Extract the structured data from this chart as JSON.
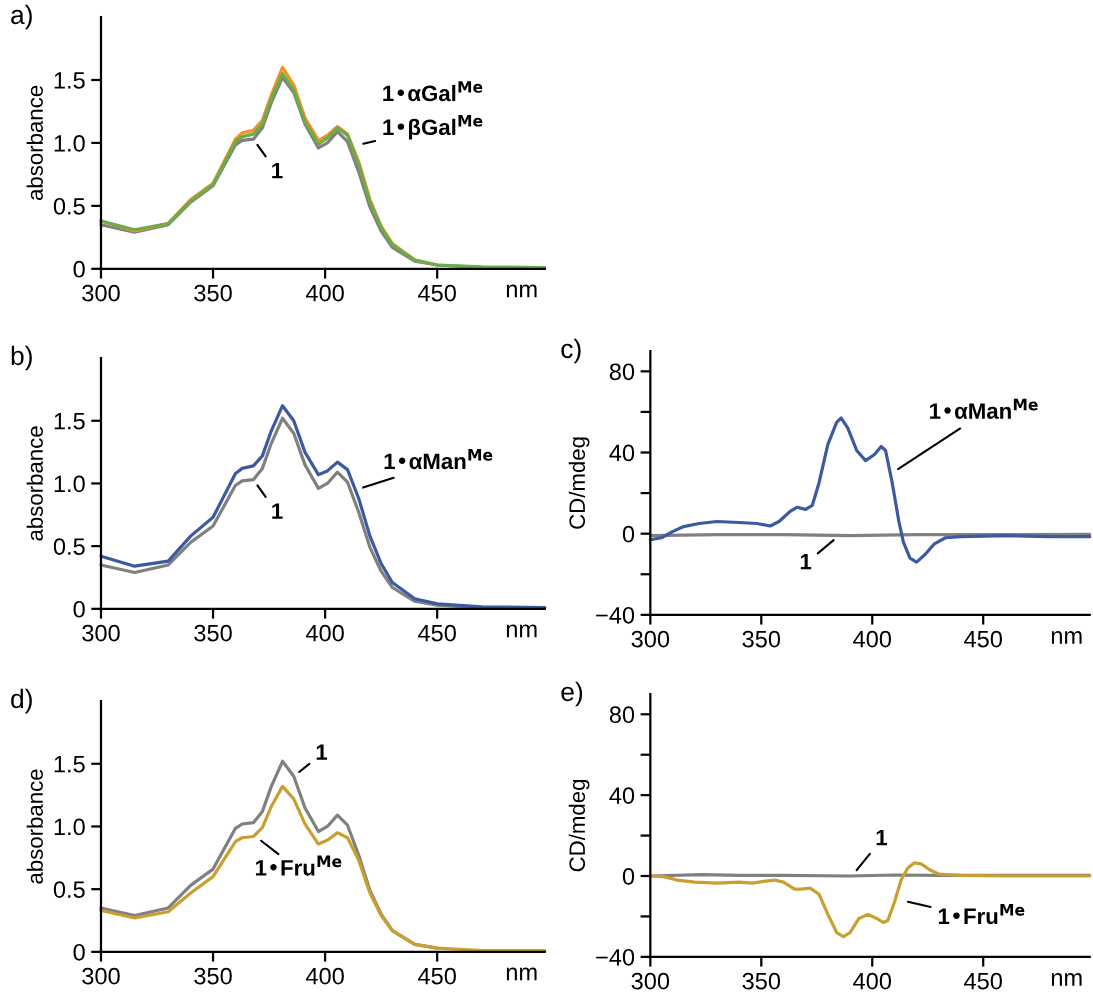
{
  "chart_data": [
    {
      "type": "line",
      "title": "a)",
      "xlabel": "nm",
      "ylabel": "absorbance",
      "xlim": [
        300,
        498
      ],
      "ylim": [
        0,
        2.0
      ],
      "xticks": [
        300,
        350,
        400,
        450
      ],
      "yticks": [
        0,
        0.5,
        {
          "value": 1,
          "label": "1.0"
        },
        1.5
      ],
      "x": [
        300,
        315,
        330,
        340,
        350,
        360,
        363,
        368,
        372,
        376,
        381,
        386,
        391,
        397,
        401,
        405.5,
        410,
        415,
        420,
        425,
        430,
        440,
        450,
        470,
        498
      ],
      "series": [
        {
          "color": "#808080",
          "values": [
            0.35,
            0.29,
            0.35,
            0.53,
            0.66,
            0.985,
            1.02,
            1.03,
            1.12,
            1.32,
            1.52,
            1.4,
            1.15,
            0.96,
            1.0,
            1.09,
            1.01,
            0.77,
            0.49,
            0.3,
            0.17,
            0.06,
            0.03,
            0.01,
            0.01
          ]
        },
        {
          "color": "#f39321",
          "values": [
            0.38,
            0.3,
            0.36,
            0.55,
            0.68,
            1.03,
            1.08,
            1.1,
            1.18,
            1.38,
            1.6,
            1.46,
            1.2,
            1.02,
            1.06,
            1.13,
            1.07,
            0.85,
            0.55,
            0.34,
            0.2,
            0.07,
            0.03,
            null,
            null
          ]
        },
        {
          "color": "#6bac4b",
          "values": [
            0.38,
            0.31,
            0.36,
            0.54,
            0.67,
            1.01,
            1.05,
            1.07,
            1.15,
            1.35,
            1.55,
            1.42,
            1.17,
            0.99,
            1.04,
            1.12,
            1.06,
            0.83,
            0.53,
            0.33,
            0.19,
            0.07,
            0.03,
            0.015,
            0.01
          ]
        }
      ],
      "annotations": [
        {
          "text": "1",
          "x": 368,
          "y": 1.03
        },
        {
          "text": "1•αGal$^{Me}$",
          "x": 414,
          "y": 0.98
        },
        {
          "text": "1•βGal$^{Me}$",
          "x": 414,
          "y": 0.98
        }
      ]
    },
    {
      "type": "line",
      "title": "b)",
      "xlabel": "nm",
      "ylabel": "absorbance",
      "xlim": [
        300,
        498
      ],
      "ylim": [
        0,
        2.0
      ],
      "xticks": [
        300,
        350,
        400,
        450
      ],
      "yticks": [
        0,
        0.5,
        {
          "value": 1,
          "label": "1.0"
        },
        1.5
      ],
      "x": [
        300,
        315,
        330,
        340,
        350,
        360,
        363,
        368,
        372,
        376,
        381,
        386,
        391,
        397,
        401,
        405.5,
        410,
        415,
        420,
        425,
        430,
        440,
        450,
        470,
        498
      ],
      "series": [
        {
          "color": "#808080",
          "values": [
            0.35,
            0.29,
            0.35,
            0.53,
            0.66,
            0.985,
            1.02,
            1.03,
            1.12,
            1.32,
            1.52,
            1.4,
            1.15,
            0.96,
            1.0,
            1.09,
            1.01,
            0.77,
            0.49,
            0.3,
            0.17,
            0.06,
            0.03,
            0.01,
            0.01
          ]
        },
        {
          "color": "#3b5aa0",
          "values": [
            0.42,
            0.34,
            0.38,
            0.58,
            0.73,
            1.08,
            1.12,
            1.14,
            1.22,
            1.42,
            1.62,
            1.5,
            1.25,
            1.07,
            1.1,
            1.17,
            1.11,
            0.88,
            0.58,
            0.36,
            0.21,
            0.08,
            0.04,
            0.015,
            0.01
          ]
        }
      ],
      "annotations": [
        {
          "text": "1",
          "x": 368,
          "y": 1.03
        },
        {
          "text": "1•αMan$^{Me}$",
          "x": 414,
          "y": 0.95
        }
      ]
    },
    {
      "type": "line",
      "title": "c)",
      "xlabel": "nm",
      "ylabel": "CD/mdeg",
      "xlim": [
        300,
        498
      ],
      "ylim": [
        -40,
        90
      ],
      "xticks": [
        300,
        350,
        400,
        450
      ],
      "yticks": [
        {
          "value": -40,
          "label": "−40"
        },
        {
          "value": -20,
          "label": null
        },
        0,
        {
          "value": 20,
          "label": null
        },
        40,
        {
          "value": 60,
          "label": null
        },
        80
      ],
      "series": [
        {
          "color": "#808080",
          "x": [
            300,
            330,
            360,
            390,
            420,
            450,
            498
          ],
          "values": [
            -1,
            -0.5,
            -0.5,
            -1,
            -0.5,
            -0.5,
            -0.3
          ]
        },
        {
          "color": "#3b5aa0",
          "x": [
            300,
            305,
            310,
            315,
            322,
            330,
            340,
            348,
            354,
            358,
            363,
            366,
            370,
            373,
            376,
            380,
            384,
            386,
            389,
            393,
            397,
            401,
            404,
            406,
            409,
            412,
            414,
            417,
            420,
            424,
            428,
            433,
            440,
            460,
            480,
            498
          ],
          "values": [
            -3,
            -2,
            1,
            3.5,
            5,
            6,
            5.5,
            5,
            3.8,
            6,
            11,
            13,
            12,
            14,
            25,
            44,
            55,
            57,
            52,
            41,
            36,
            39,
            43,
            41,
            25,
            6,
            -4,
            -12,
            -14,
            -10,
            -5,
            -2,
            -1.5,
            -1,
            -1.5,
            -1.5
          ]
        }
      ],
      "annotations": [
        {
          "text": "1",
          "x": 385,
          "y": -1
        },
        {
          "text": "1•αMan$^{Me}$",
          "x": 409,
          "y": 30
        }
      ]
    },
    {
      "type": "line",
      "title": "d)",
      "xlabel": "nm",
      "ylabel": "absorbance",
      "xlim": [
        300,
        498
      ],
      "ylim": [
        0,
        2.0
      ],
      "xticks": [
        300,
        350,
        400,
        450
      ],
      "yticks": [
        0,
        0.5,
        {
          "value": 1,
          "label": "1.0"
        },
        1.5
      ],
      "x": [
        300,
        315,
        330,
        340,
        350,
        360,
        363,
        368,
        372,
        376,
        381,
        386,
        391,
        397,
        401,
        405.5,
        410,
        415,
        420,
        425,
        430,
        440,
        450,
        470,
        498
      ],
      "series": [
        {
          "color": "#808080",
          "values": [
            0.35,
            0.29,
            0.35,
            0.53,
            0.66,
            0.985,
            1.02,
            1.03,
            1.12,
            1.32,
            1.52,
            1.4,
            1.15,
            0.96,
            1.0,
            1.09,
            1.01,
            0.77,
            0.49,
            0.3,
            0.17,
            0.06,
            0.03,
            null,
            null
          ]
        },
        {
          "color": "#c9a030",
          "values": [
            0.33,
            0.27,
            0.32,
            0.47,
            0.6,
            0.88,
            0.91,
            0.92,
            0.99,
            1.16,
            1.32,
            1.22,
            1.02,
            0.86,
            0.89,
            0.95,
            0.91,
            0.73,
            0.47,
            0.29,
            0.17,
            0.06,
            0.03,
            0.01,
            0.01
          ]
        }
      ],
      "annotations": [
        {
          "text": "1",
          "x": 386,
          "y": 1.4
        },
        {
          "text": "1•Fru$^{Me}$",
          "x": 369,
          "y": 0.92
        }
      ]
    },
    {
      "type": "line",
      "title": "e)",
      "xlabel": "nm",
      "ylabel": "CD/mdeg",
      "xlim": [
        300,
        498
      ],
      "ylim": [
        -40,
        90
      ],
      "xticks": [
        300,
        350,
        400,
        450
      ],
      "yticks": [
        {
          "value": -40,
          "label": "−40"
        },
        {
          "value": -20,
          "label": null
        },
        0,
        {
          "value": 20,
          "label": null
        },
        40,
        {
          "value": 60,
          "label": null
        },
        80
      ],
      "series": [
        {
          "color": "#808080",
          "x": [
            300,
            323,
            340,
            360,
            390,
            410,
            430,
            498
          ],
          "values": [
            0,
            0.7,
            0.3,
            0.3,
            0,
            0.5,
            0.3,
            0.3
          ]
        },
        {
          "color": "#c9a030",
          "x": [
            300,
            306,
            312,
            320,
            330,
            340,
            346,
            352,
            356,
            360,
            365,
            368,
            372,
            376,
            380,
            384,
            387,
            390,
            394,
            398,
            402,
            405,
            407,
            410,
            413,
            416,
            419,
            422,
            426,
            430,
            440,
            460,
            498
          ],
          "values": [
            0,
            -0.3,
            -2,
            -3,
            -3.5,
            -3,
            -3.5,
            -2.5,
            -2,
            -3,
            -6.5,
            -6.5,
            -6,
            -9,
            -19,
            -28,
            -30,
            -28,
            -21,
            -19,
            -21,
            -23,
            -22,
            -13,
            -2,
            4,
            6.5,
            6,
            3,
            1,
            0.3,
            0,
            0
          ]
        }
      ],
      "annotations": [
        {
          "text": "1",
          "x": 391,
          "y": 0.2
        },
        {
          "text": "1•Fru$^{Me}$",
          "x": 413,
          "y": -12
        }
      ]
    }
  ]
}
